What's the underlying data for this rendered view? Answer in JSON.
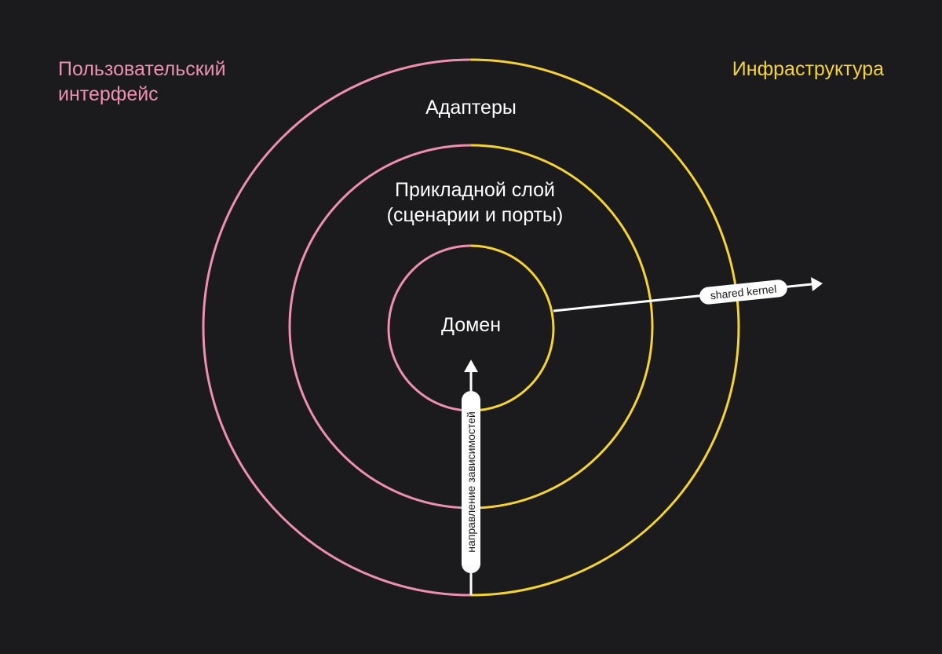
{
  "labels": {
    "ui": "Пользовательский\nинтерфейс",
    "infrastructure": "Инфраструктура"
  },
  "layers": {
    "adapters": "Адаптеры",
    "application_line1": "Прикладной слой",
    "application_line2": "(сценарии и порты)",
    "domain": "Домен"
  },
  "arrows": {
    "dependency_direction": "направление зависимостей",
    "shared_kernel": "shared kernel"
  },
  "colors": {
    "background": "#1b1b1e",
    "ui_pink": "#ee8fae",
    "infra_yellow": "#f5d332",
    "text_white": "#ffffff"
  }
}
